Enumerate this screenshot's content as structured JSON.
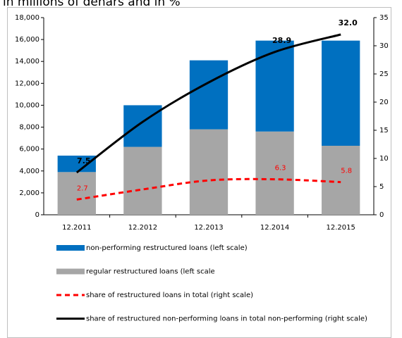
{
  "chart_data": {
    "type": "bar",
    "stacked": true,
    "title": "in millions of denars and in %",
    "categories": [
      "12.2011",
      "12.2012",
      "12.2013",
      "12.2014",
      "12.2015"
    ],
    "series": [
      {
        "name": "regular restructured loans (left scale",
        "type": "bar",
        "color": "#a6a6a6",
        "values": [
          3900,
          6200,
          7800,
          7600,
          6300
        ]
      },
      {
        "name": "non-performing restructured loans (left scale)",
        "type": "bar",
        "color": "#0070c0",
        "values": [
          1500,
          3800,
          6300,
          8300,
          9600
        ]
      },
      {
        "name": "share of restructured loans in total (right scale)",
        "type": "line",
        "axis": "y2",
        "color": "#ff0000",
        "dashed": true,
        "values": [
          2.7,
          4.5,
          6.1,
          6.3,
          5.8
        ],
        "value_labels": [
          "2.7",
          null,
          null,
          "6.3",
          "5.8"
        ]
      },
      {
        "name": "share of restructured non-performing loans in total non-performing (right scale)",
        "type": "line",
        "axis": "y2",
        "color": "#000000",
        "dashed": false,
        "values": [
          7.5,
          16.5,
          23.5,
          28.9,
          32.0
        ],
        "value_labels": [
          "7.5",
          null,
          null,
          "28.9",
          "32.0"
        ]
      }
    ],
    "legend_order": [
      1,
      0,
      2,
      3
    ],
    "ylim": [
      0,
      18000
    ],
    "yticks": [
      0,
      {
        "value": 2000,
        "label": "2,000"
      },
      {
        "value": 4000,
        "label": "4,000"
      },
      {
        "value": 6000,
        "label": "6,000"
      },
      {
        "value": 8000,
        "label": "8,000"
      },
      {
        "value": 10000,
        "label": "10,000"
      },
      {
        "value": 12000,
        "label": "12,000"
      },
      {
        "value": 14000,
        "label": "14,000"
      },
      {
        "value": 16000,
        "label": "16,000"
      },
      {
        "value": 18000,
        "label": "18,000"
      }
    ],
    "y2lim": [
      0,
      35
    ],
    "y2ticks": [
      0,
      5,
      10,
      15,
      20,
      25,
      30,
      35
    ],
    "grid": false
  }
}
